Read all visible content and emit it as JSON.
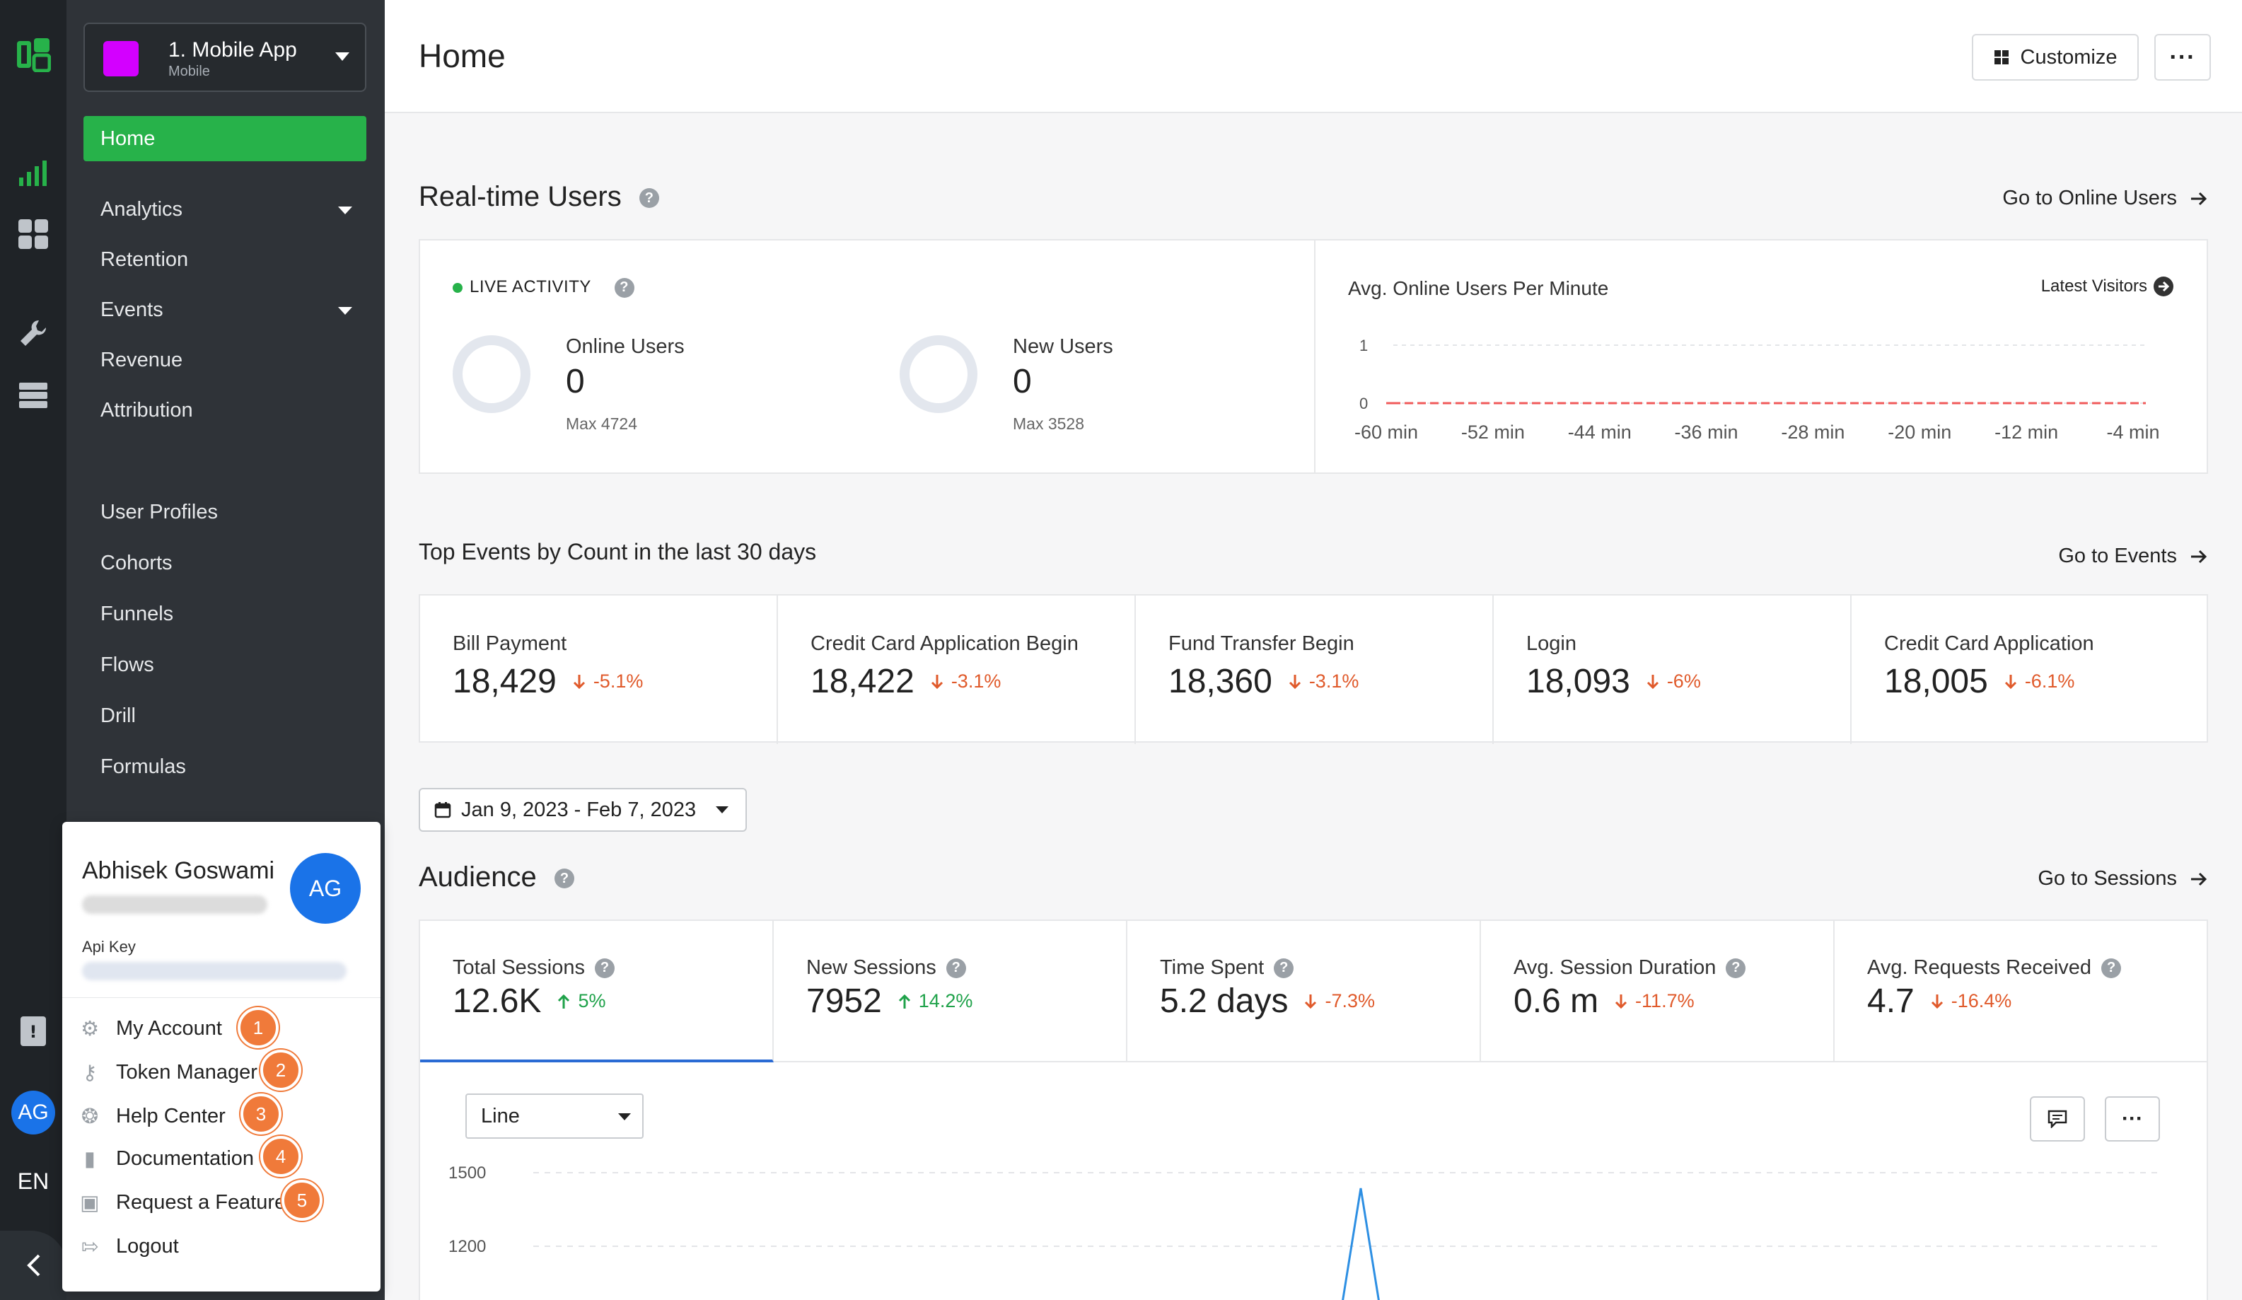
{
  "app_selector": {
    "name": "1. Mobile App",
    "type": "Mobile",
    "swatch_color": "#d300ff"
  },
  "nav": {
    "home": "Home",
    "items": [
      "Analytics",
      "Retention",
      "Events",
      "Revenue",
      "Attribution"
    ],
    "items2": [
      "User Profiles",
      "Cohorts",
      "Funnels",
      "Flows",
      "Drill",
      "Formulas"
    ]
  },
  "rail": {
    "avatar": "AG",
    "language": "EN"
  },
  "header": {
    "title": "Home",
    "customize": "Customize",
    "more": "···"
  },
  "realtime": {
    "title": "Real-time Users",
    "goto": "Go to Online Users",
    "live_label": "LIVE ACTIVITY",
    "online": {
      "label": "Online Users",
      "value": "0",
      "max": "Max 4724"
    },
    "new": {
      "label": "New Users",
      "value": "0",
      "max": "Max 3528"
    },
    "chart_title": "Avg. Online Users Per Minute",
    "latest_visitors": "Latest Visitors"
  },
  "chart_data": [
    {
      "type": "line",
      "title": "Avg. Online Users Per Minute",
      "x": [
        "-60 min",
        "-52 min",
        "-44 min",
        "-36 min",
        "-28 min",
        "-20 min",
        "-12 min",
        "-4 min"
      ],
      "series": [
        {
          "values": [
            0,
            0,
            0,
            0,
            0,
            0,
            0,
            0
          ]
        }
      ],
      "ylim": [
        0,
        1
      ],
      "yticks": [
        "1",
        "0"
      ],
      "grid": true,
      "line_color": "#f05a5a"
    },
    {
      "type": "line",
      "yticks": [
        "1500",
        "1200"
      ],
      "grid": true,
      "line_color": "#2d8fe3"
    }
  ],
  "top_events": {
    "title": "Top Events by Count in the last 30 days",
    "goto": "Go to Events",
    "items": [
      {
        "name": "Bill Payment",
        "value": "18,429",
        "delta": "-5.1%"
      },
      {
        "name": "Credit Card Application Begin",
        "value": "18,422",
        "delta": "-3.1%"
      },
      {
        "name": "Fund Transfer Begin",
        "value": "18,360",
        "delta": "-3.1%"
      },
      {
        "name": "Login",
        "value": "18,093",
        "delta": "-6%"
      },
      {
        "name": "Credit Card Application",
        "value": "18,005",
        "delta": "-6.1%"
      }
    ]
  },
  "date_range": "Jan 9, 2023 - Feb 7, 2023",
  "audience": {
    "title": "Audience",
    "goto": "Go to Sessions",
    "metrics": [
      {
        "name": "Total Sessions",
        "value": "12.6K",
        "delta": "5%",
        "direction": "up"
      },
      {
        "name": "New Sessions",
        "value": "7952",
        "delta": "14.2%",
        "direction": "up"
      },
      {
        "name": "Time Spent",
        "value": "5.2 days",
        "delta": "-7.3%",
        "direction": "down"
      },
      {
        "name": "Avg. Session Duration",
        "value": "0.6 m",
        "delta": "-11.7%",
        "direction": "down"
      },
      {
        "name": "Avg. Requests Received",
        "value": "4.7",
        "delta": "-16.4%",
        "direction": "down"
      }
    ],
    "chart_type": "Line"
  },
  "user_menu": {
    "name": "Abhisek Goswami",
    "avatar": "AG",
    "api_key_label": "Api Key",
    "items": [
      {
        "label": "My Account",
        "step": "1"
      },
      {
        "label": "Token Manager",
        "step": "2"
      },
      {
        "label": "Help Center",
        "step": "3"
      },
      {
        "label": "Documentation",
        "step": "4"
      },
      {
        "label": "Request a Feature",
        "step": "5"
      },
      {
        "label": "Logout"
      }
    ]
  },
  "colors": {
    "accent_green": "#27b24a",
    "sidebar_bg": "#2f3338",
    "down": "#e05a2b",
    "up": "#1fa24a",
    "step_badge": "#f07a3a"
  }
}
